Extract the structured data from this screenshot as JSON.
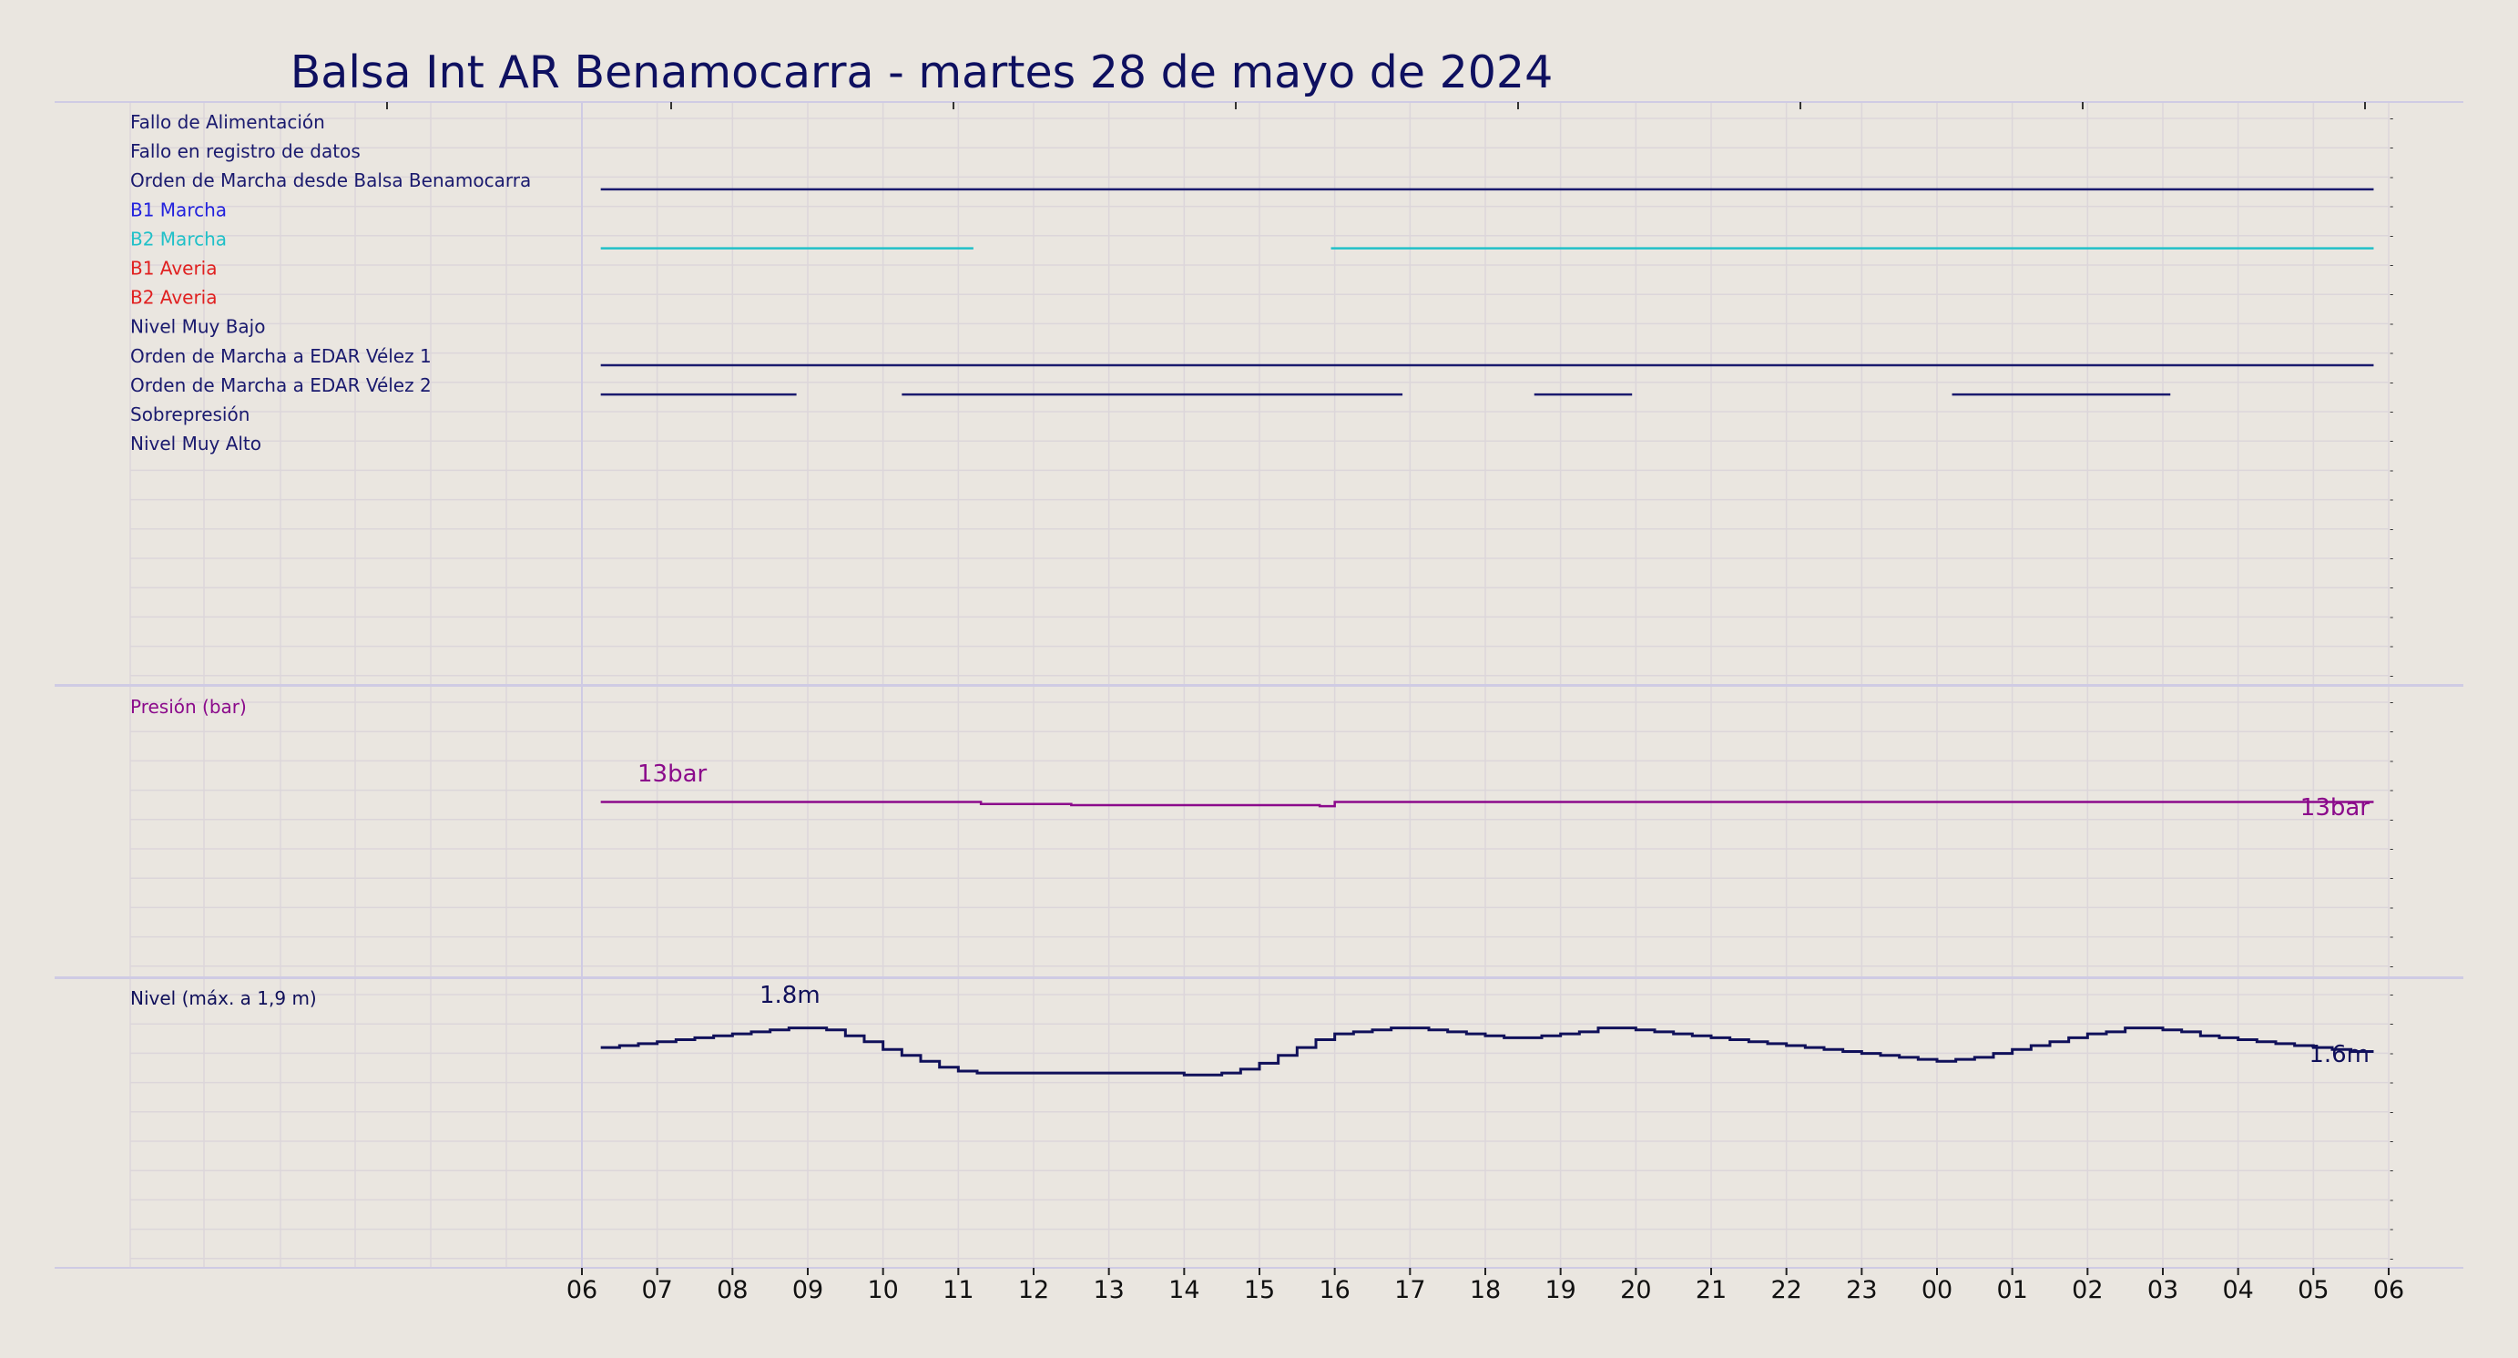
{
  "chart_data": {
    "type": "line",
    "title": "Balsa Int AR Benamocarra   -   martes 28 de mayo de 2024",
    "x_tick_labels": [
      "06",
      "07",
      "08",
      "09",
      "10",
      "11",
      "12",
      "13",
      "14",
      "15",
      "16",
      "17",
      "18",
      "19",
      "20",
      "21",
      "22",
      "23",
      "00",
      "01",
      "02",
      "03",
      "04",
      "05",
      "06"
    ],
    "x_range_hours": [
      0,
      24
    ],
    "signals": {
      "labels": [
        {
          "text": "Fallo de Alimentación",
          "color": "#1A1A6E"
        },
        {
          "text": "Fallo en registro de datos",
          "color": "#1A1A6E"
        },
        {
          "text": "Orden de Marcha desde Balsa Benamocarra",
          "color": "#1A1A6E"
        },
        {
          "text": "B1 Marcha",
          "color": "#2222DD"
        },
        {
          "text": "B2 Marcha",
          "color": "#20C0C8"
        },
        {
          "text": "B1 Averia",
          "color": "#E02020"
        },
        {
          "text": "B2 Averia",
          "color": "#E02020"
        },
        {
          "text": "Nivel Muy Bajo",
          "color": "#1A1A6E"
        },
        {
          "text": "Orden de Marcha a EDAR Vélez 1",
          "color": "#1A1A6E"
        },
        {
          "text": "Orden de Marcha a EDAR Vélez 2",
          "color": "#1A1A6E"
        },
        {
          "text": "Sobrepresión",
          "color": "#1A1A6E"
        },
        {
          "text": "Nivel Muy Alto",
          "color": "#1A1A6E"
        }
      ],
      "active_intervals": [
        {
          "signal_index": 2,
          "color": "#1A1A6E",
          "intervals": [
            [
              0.25,
              23.8
            ]
          ]
        },
        {
          "signal_index": 4,
          "color": "#20C0C8",
          "intervals": [
            [
              0.25,
              5.2
            ],
            [
              9.95,
              23.8
            ]
          ]
        },
        {
          "signal_index": 8,
          "color": "#1A1A6E",
          "intervals": [
            [
              0.25,
              23.8
            ]
          ]
        },
        {
          "signal_index": 9,
          "color": "#1A1A6E",
          "intervals": [
            [
              0.25,
              2.85
            ],
            [
              4.25,
              10.9
            ],
            [
              12.65,
              13.95
            ],
            [
              18.2,
              21.1
            ]
          ]
        }
      ]
    },
    "pressure": {
      "label": "Presión (bar)",
      "color": "#8B0A8B",
      "ylim": [
        0,
        20
      ],
      "max_label": "13bar",
      "last_label": "13bar",
      "series": [
        [
          0.25,
          13.0
        ],
        [
          0.75,
          13.0
        ],
        [
          1.0,
          13.0
        ],
        [
          1.75,
          13.0
        ],
        [
          2.5,
          13.0
        ],
        [
          3.0,
          13.0
        ],
        [
          4.0,
          13.0
        ],
        [
          5.0,
          13.0
        ],
        [
          5.3,
          12.8
        ],
        [
          6.0,
          12.8
        ],
        [
          6.5,
          12.7
        ],
        [
          7.0,
          12.7
        ],
        [
          8.0,
          12.7
        ],
        [
          9.0,
          12.7
        ],
        [
          9.8,
          12.6
        ],
        [
          10.0,
          13.0
        ],
        [
          11.0,
          13.0
        ],
        [
          12.0,
          13.0
        ],
        [
          13.0,
          13.0
        ],
        [
          14.0,
          13.0
        ],
        [
          15.0,
          13.0
        ],
        [
          16.0,
          13.0
        ],
        [
          17.0,
          13.0
        ],
        [
          18.0,
          13.0
        ],
        [
          19.0,
          13.0
        ],
        [
          20.0,
          13.0
        ],
        [
          21.0,
          13.0
        ],
        [
          22.0,
          13.0
        ],
        [
          23.0,
          13.0
        ],
        [
          23.8,
          13.0
        ]
      ]
    },
    "level": {
      "label": "Nivel (máx. a 1,9 m)",
      "color": "#10105A",
      "unit": "m",
      "ylim": [
        0.6,
        1.9
      ],
      "max_label": "1.8m",
      "last_label": "1.6m",
      "series": [
        [
          0.25,
          1.63
        ],
        [
          0.5,
          1.64
        ],
        [
          0.75,
          1.65
        ],
        [
          1.0,
          1.66
        ],
        [
          1.25,
          1.67
        ],
        [
          1.5,
          1.68
        ],
        [
          1.75,
          1.69
        ],
        [
          2.0,
          1.7
        ],
        [
          2.25,
          1.71
        ],
        [
          2.5,
          1.72
        ],
        [
          2.75,
          1.73
        ],
        [
          3.0,
          1.73
        ],
        [
          3.25,
          1.72
        ],
        [
          3.5,
          1.69
        ],
        [
          3.75,
          1.66
        ],
        [
          4.0,
          1.62
        ],
        [
          4.25,
          1.59
        ],
        [
          4.5,
          1.56
        ],
        [
          4.75,
          1.53
        ],
        [
          5.0,
          1.51
        ],
        [
          5.25,
          1.5
        ],
        [
          6.0,
          1.5
        ],
        [
          7.0,
          1.5
        ],
        [
          8.0,
          1.49
        ],
        [
          8.5,
          1.5
        ],
        [
          8.75,
          1.52
        ],
        [
          9.0,
          1.55
        ],
        [
          9.25,
          1.59
        ],
        [
          9.5,
          1.63
        ],
        [
          9.75,
          1.67
        ],
        [
          10.0,
          1.7
        ],
        [
          10.25,
          1.71
        ],
        [
          10.5,
          1.72
        ],
        [
          10.75,
          1.73
        ],
        [
          11.0,
          1.73
        ],
        [
          11.25,
          1.72
        ],
        [
          11.5,
          1.71
        ],
        [
          11.75,
          1.7
        ],
        [
          12.0,
          1.69
        ],
        [
          12.25,
          1.68
        ],
        [
          12.5,
          1.68
        ],
        [
          12.75,
          1.69
        ],
        [
          13.0,
          1.7
        ],
        [
          13.25,
          1.71
        ],
        [
          13.5,
          1.73
        ],
        [
          13.75,
          1.73
        ],
        [
          14.0,
          1.72
        ],
        [
          14.25,
          1.71
        ],
        [
          14.5,
          1.7
        ],
        [
          14.75,
          1.69
        ],
        [
          15.0,
          1.68
        ],
        [
          15.25,
          1.67
        ],
        [
          15.5,
          1.66
        ],
        [
          15.75,
          1.65
        ],
        [
          16.0,
          1.64
        ],
        [
          16.25,
          1.63
        ],
        [
          16.5,
          1.62
        ],
        [
          16.75,
          1.61
        ],
        [
          17.0,
          1.6
        ],
        [
          17.25,
          1.59
        ],
        [
          17.5,
          1.58
        ],
        [
          17.75,
          1.57
        ],
        [
          18.0,
          1.56
        ],
        [
          18.25,
          1.57
        ],
        [
          18.5,
          1.58
        ],
        [
          18.75,
          1.6
        ],
        [
          19.0,
          1.62
        ],
        [
          19.25,
          1.64
        ],
        [
          19.5,
          1.66
        ],
        [
          19.75,
          1.68
        ],
        [
          20.0,
          1.7
        ],
        [
          20.25,
          1.71
        ],
        [
          20.5,
          1.73
        ],
        [
          20.75,
          1.73
        ],
        [
          21.0,
          1.72
        ],
        [
          21.25,
          1.71
        ],
        [
          21.5,
          1.69
        ],
        [
          21.75,
          1.68
        ],
        [
          22.0,
          1.67
        ],
        [
          22.25,
          1.66
        ],
        [
          22.5,
          1.65
        ],
        [
          22.75,
          1.64
        ],
        [
          23.0,
          1.63
        ],
        [
          23.25,
          1.62
        ],
        [
          23.5,
          1.61
        ],
        [
          23.8,
          1.61
        ]
      ]
    }
  }
}
